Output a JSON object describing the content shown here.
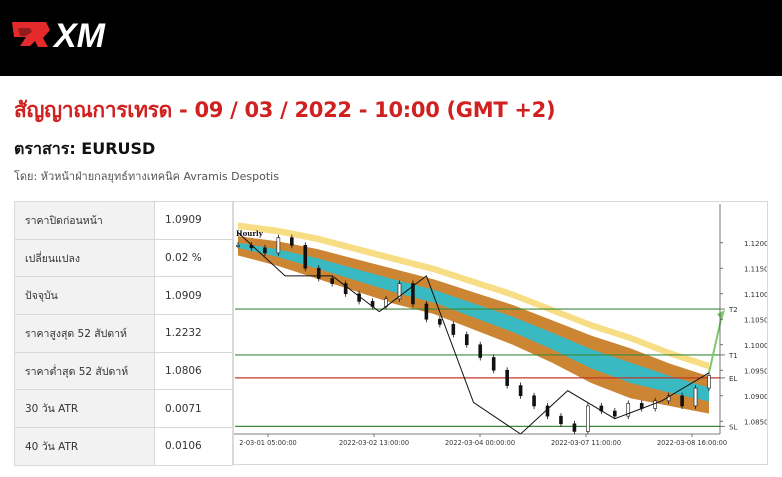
{
  "header": {
    "brand": "XM"
  },
  "signal": {
    "headline": "สัญญาณการเทรด - 09 / 03 / 2022 - 10:00 (GMT +2)",
    "instrument": "ตราสาร: EURUSD",
    "byline": "โดย: หัวหน้าฝ่ายกลยุทธ์ทางเทคนิค Avramis Despotis"
  },
  "stats": [
    {
      "label": "ราคาปิดก่อนหน้า",
      "value": "1.0909"
    },
    {
      "label": "เปลี่ยนแปลง",
      "value": "0.02 %"
    },
    {
      "label": "ปัจจุบัน",
      "value": "1.0909"
    },
    {
      "label": "ราคาสูงสุด 52 สัปดาห์",
      "value": "1.2232"
    },
    {
      "label": "ราคาต่ำสุด 52 สัปดาห์",
      "value": "1.0806"
    },
    {
      "label": "30 วัน ATR",
      "value": "0.0071"
    },
    {
      "label": "40 วัน ATR",
      "value": "0.0106"
    }
  ],
  "chart_data": {
    "type": "line",
    "timeframe_label": "Hourly",
    "ylim": [
      1.0825,
      1.1225
    ],
    "y_ticks": [
      "1.1200",
      "1.1150",
      "1.1100",
      "1.1050",
      "1.1000",
      "1.0950",
      "1.0900",
      "1.0850"
    ],
    "x_ticks": [
      "2-03-01 05:00:00",
      "2022-03-02 13:00:00",
      "2022-03-04 00:00:00",
      "2022-03-07 11:00:00",
      "2022-03-08 16:00:00"
    ],
    "levels": [
      {
        "name": "T2",
        "value": 1.107,
        "color": "#3d8a3d"
      },
      {
        "name": "T1",
        "value": 1.098,
        "color": "#3d8a3d"
      },
      {
        "name": "EL",
        "value": 1.0935,
        "color": "#c0392b"
      },
      {
        "name": "SL",
        "value": 1.084,
        "color": "#3d8a3d"
      }
    ],
    "price": [
      1.1195,
      1.119,
      1.118,
      1.121,
      1.1195,
      1.115,
      1.113,
      1.112,
      1.11,
      1.1085,
      1.1075,
      1.109,
      1.112,
      1.108,
      1.105,
      1.104,
      1.102,
      1.1,
      1.0975,
      1.095,
      1.092,
      1.09,
      1.088,
      1.086,
      1.0845,
      1.083,
      1.088,
      1.087,
      1.086,
      1.0885,
      1.0875,
      1.089,
      1.09,
      1.088,
      1.0915,
      1.094
    ],
    "zigzag": [
      1.122,
      1.1135,
      1.1135,
      1.1065,
      1.1135,
      1.0887,
      1.0825,
      1.091,
      1.0855,
      1.089,
      1.0945
    ],
    "band_upper": [
      1.1205,
      1.1195,
      1.118,
      1.116,
      1.114,
      1.112,
      1.1095,
      1.107,
      1.104,
      1.101,
      1.0985,
      1.0955,
      1.093
    ],
    "band_lower": [
      1.1185,
      1.1165,
      1.114,
      1.1115,
      1.109,
      1.107,
      1.104,
      1.101,
      1.0975,
      1.0935,
      1.0905,
      1.089,
      1.0875
    ],
    "colors": {
      "outer_band": "#cc8533",
      "inner_band": "#39b9c2",
      "slow_band": "#f7dd83",
      "price": "#111111",
      "target_arrow": "#7cc86a"
    }
  }
}
